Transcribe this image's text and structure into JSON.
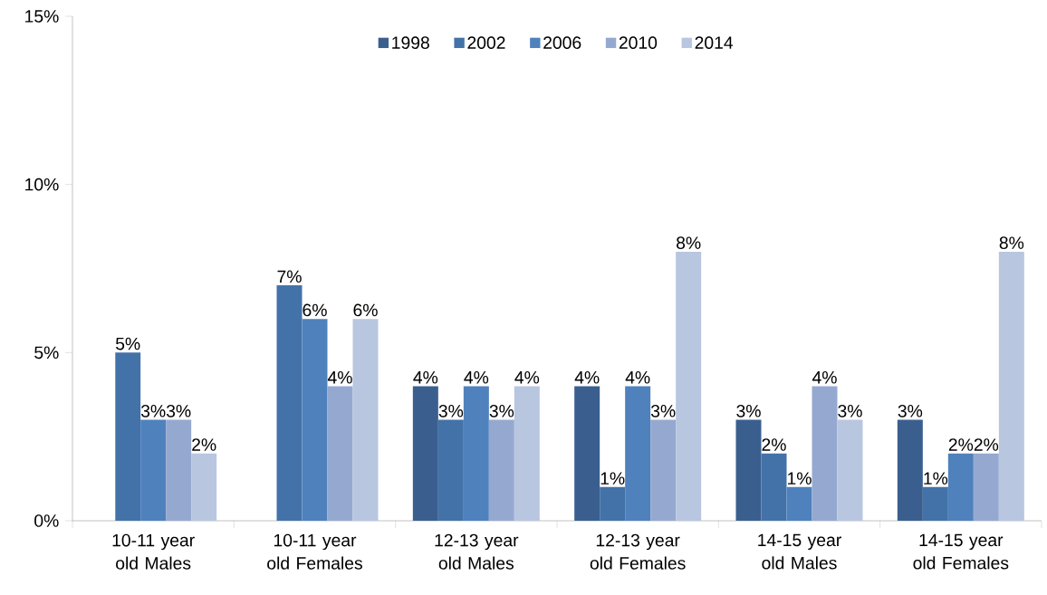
{
  "chart_data": {
    "type": "bar",
    "categories": [
      "10-11 year old Males",
      "10-11 year old Females",
      "12-13 year old Males",
      "12-13 year old Females",
      "14-15 year old Males",
      "14-15 year old Females"
    ],
    "series": [
      {
        "name": "1998",
        "color": "#3a5f8f",
        "values": [
          null,
          null,
          4,
          4,
          3,
          3
        ],
        "value_labels": [
          null,
          null,
          "4%",
          "4%",
          "3%",
          "3%"
        ]
      },
      {
        "name": "2002",
        "color": "#4372a8",
        "values": [
          5,
          7,
          3,
          1,
          2,
          1
        ],
        "value_labels": [
          "5%",
          "7%",
          "3%",
          "1%",
          "2%",
          "1%"
        ]
      },
      {
        "name": "2006",
        "color": "#4f81bd",
        "values": [
          3,
          6,
          4,
          4,
          1,
          2
        ],
        "value_labels": [
          "3%",
          "6%",
          "4%",
          "4%",
          "1%",
          "2%"
        ]
      },
      {
        "name": "2010",
        "color": "#95a9d0",
        "values": [
          3,
          4,
          3,
          3,
          4,
          2
        ],
        "value_labels": [
          "3%",
          "4%",
          "3%",
          "3%",
          "4%",
          "2%"
        ]
      },
      {
        "name": "2014",
        "color": "#b9c6e0",
        "values": [
          2,
          6,
          4,
          8,
          3,
          8
        ],
        "value_labels": [
          "2%",
          "6%",
          "4%",
          "8%",
          "3%",
          "8%"
        ]
      }
    ],
    "ylim": [
      0,
      15
    ],
    "yticks": [
      {
        "value": 0,
        "label": "0%"
      },
      {
        "value": 5,
        "label": "5%"
      },
      {
        "value": 10,
        "label": "10%"
      },
      {
        "value": 15,
        "label": "15%"
      }
    ],
    "grid": false,
    "legend": "top"
  }
}
